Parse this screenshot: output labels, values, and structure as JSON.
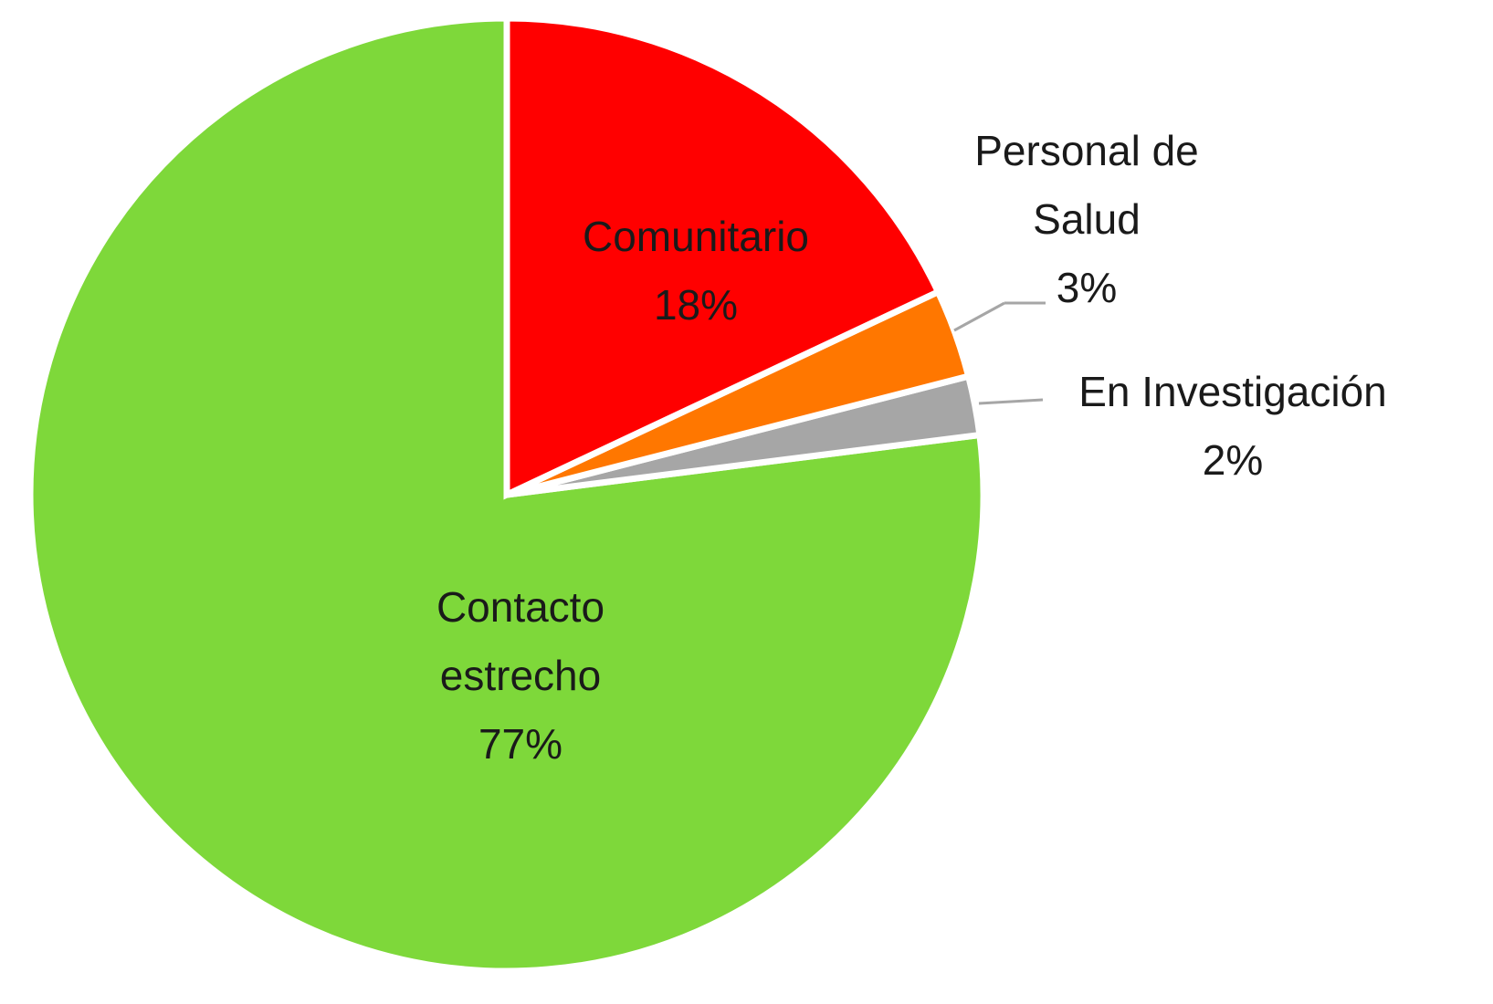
{
  "chart_data": {
    "type": "pie",
    "categories": [
      "Comunitario",
      "Personal de Salud",
      "En Investigación",
      "Contacto estrecho"
    ],
    "values": [
      18,
      3,
      2,
      77
    ],
    "value_labels": [
      "18%",
      "3%",
      "2%",
      "77%"
    ],
    "colors": [
      "#ff0000",
      "#ff7700",
      "#a6a6a6",
      "#7ed83a"
    ]
  }
}
